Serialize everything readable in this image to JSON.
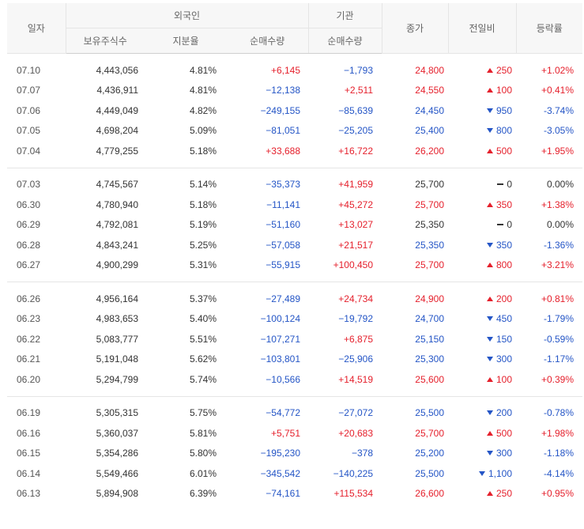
{
  "header": {
    "date": "일자",
    "foreign": "외국인",
    "institution": "기관",
    "close": "종가",
    "change": "전일비",
    "rate": "등락률",
    "holdings": "보유주식수",
    "ratio": "지분율",
    "foreign_net": "순매수량",
    "inst_net": "순매수량"
  },
  "groups": [
    [
      {
        "date": "07.10",
        "hold": "4,443,056",
        "ratio": "4.81%",
        "fnet": "+6,145",
        "inet": "−1,793",
        "close": "24,800",
        "dir": "up",
        "chg": "250",
        "rate": "+1.02%"
      },
      {
        "date": "07.07",
        "hold": "4,436,911",
        "ratio": "4.81%",
        "fnet": "−12,138",
        "inet": "+2,511",
        "close": "24,550",
        "dir": "up",
        "chg": "100",
        "rate": "+0.41%"
      },
      {
        "date": "07.06",
        "hold": "4,449,049",
        "ratio": "4.82%",
        "fnet": "−249,155",
        "inet": "−85,639",
        "close": "24,450",
        "dir": "down",
        "chg": "950",
        "rate": "-3.74%"
      },
      {
        "date": "07.05",
        "hold": "4,698,204",
        "ratio": "5.09%",
        "fnet": "−81,051",
        "inet": "−25,205",
        "close": "25,400",
        "dir": "down",
        "chg": "800",
        "rate": "-3.05%"
      },
      {
        "date": "07.04",
        "hold": "4,779,255",
        "ratio": "5.18%",
        "fnet": "+33,688",
        "inet": "+16,722",
        "close": "26,200",
        "dir": "up",
        "chg": "500",
        "rate": "+1.95%"
      }
    ],
    [
      {
        "date": "07.03",
        "hold": "4,745,567",
        "ratio": "5.14%",
        "fnet": "−35,373",
        "inet": "+41,959",
        "close": "25,700",
        "dir": "flat",
        "chg": "0",
        "rate": "0.00%"
      },
      {
        "date": "06.30",
        "hold": "4,780,940",
        "ratio": "5.18%",
        "fnet": "−11,141",
        "inet": "+45,272",
        "close": "25,700",
        "dir": "up",
        "chg": "350",
        "rate": "+1.38%"
      },
      {
        "date": "06.29",
        "hold": "4,792,081",
        "ratio": "5.19%",
        "fnet": "−51,160",
        "inet": "+13,027",
        "close": "25,350",
        "dir": "flat",
        "chg": "0",
        "rate": "0.00%"
      },
      {
        "date": "06.28",
        "hold": "4,843,241",
        "ratio": "5.25%",
        "fnet": "−57,058",
        "inet": "+21,517",
        "close": "25,350",
        "dir": "down",
        "chg": "350",
        "rate": "-1.36%"
      },
      {
        "date": "06.27",
        "hold": "4,900,299",
        "ratio": "5.31%",
        "fnet": "−55,915",
        "inet": "+100,450",
        "close": "25,700",
        "dir": "up",
        "chg": "800",
        "rate": "+3.21%"
      }
    ],
    [
      {
        "date": "06.26",
        "hold": "4,956,164",
        "ratio": "5.37%",
        "fnet": "−27,489",
        "inet": "+24,734",
        "close": "24,900",
        "dir": "up",
        "chg": "200",
        "rate": "+0.81%"
      },
      {
        "date": "06.23",
        "hold": "4,983,653",
        "ratio": "5.40%",
        "fnet": "−100,124",
        "inet": "−19,792",
        "close": "24,700",
        "dir": "down",
        "chg": "450",
        "rate": "-1.79%"
      },
      {
        "date": "06.22",
        "hold": "5,083,777",
        "ratio": "5.51%",
        "fnet": "−107,271",
        "inet": "+6,875",
        "close": "25,150",
        "dir": "down",
        "chg": "150",
        "rate": "-0.59%"
      },
      {
        "date": "06.21",
        "hold": "5,191,048",
        "ratio": "5.62%",
        "fnet": "−103,801",
        "inet": "−25,906",
        "close": "25,300",
        "dir": "down",
        "chg": "300",
        "rate": "-1.17%"
      },
      {
        "date": "06.20",
        "hold": "5,294,799",
        "ratio": "5.74%",
        "fnet": "−10,566",
        "inet": "+14,519",
        "close": "25,600",
        "dir": "up",
        "chg": "100",
        "rate": "+0.39%"
      }
    ],
    [
      {
        "date": "06.19",
        "hold": "5,305,315",
        "ratio": "5.75%",
        "fnet": "−54,772",
        "inet": "−27,072",
        "close": "25,500",
        "dir": "down",
        "chg": "200",
        "rate": "-0.78%"
      },
      {
        "date": "06.16",
        "hold": "5,360,037",
        "ratio": "5.81%",
        "fnet": "+5,751",
        "inet": "+20,683",
        "close": "25,700",
        "dir": "up",
        "chg": "500",
        "rate": "+1.98%"
      },
      {
        "date": "06.15",
        "hold": "5,354,286",
        "ratio": "5.80%",
        "fnet": "−195,230",
        "inet": "−378",
        "close": "25,200",
        "dir": "down",
        "chg": "300",
        "rate": "-1.18%"
      },
      {
        "date": "06.14",
        "hold": "5,549,466",
        "ratio": "6.01%",
        "fnet": "−345,542",
        "inet": "−140,225",
        "close": "25,500",
        "dir": "down",
        "chg": "1,100",
        "rate": "-4.14%"
      },
      {
        "date": "06.13",
        "hold": "5,894,908",
        "ratio": "6.39%",
        "fnet": "−74,161",
        "inet": "+115,534",
        "close": "26,600",
        "dir": "up",
        "chg": "250",
        "rate": "+0.95%"
      }
    ]
  ],
  "colors": {
    "up": "#e5202c",
    "down": "#2455c6",
    "flat": "#333333"
  }
}
